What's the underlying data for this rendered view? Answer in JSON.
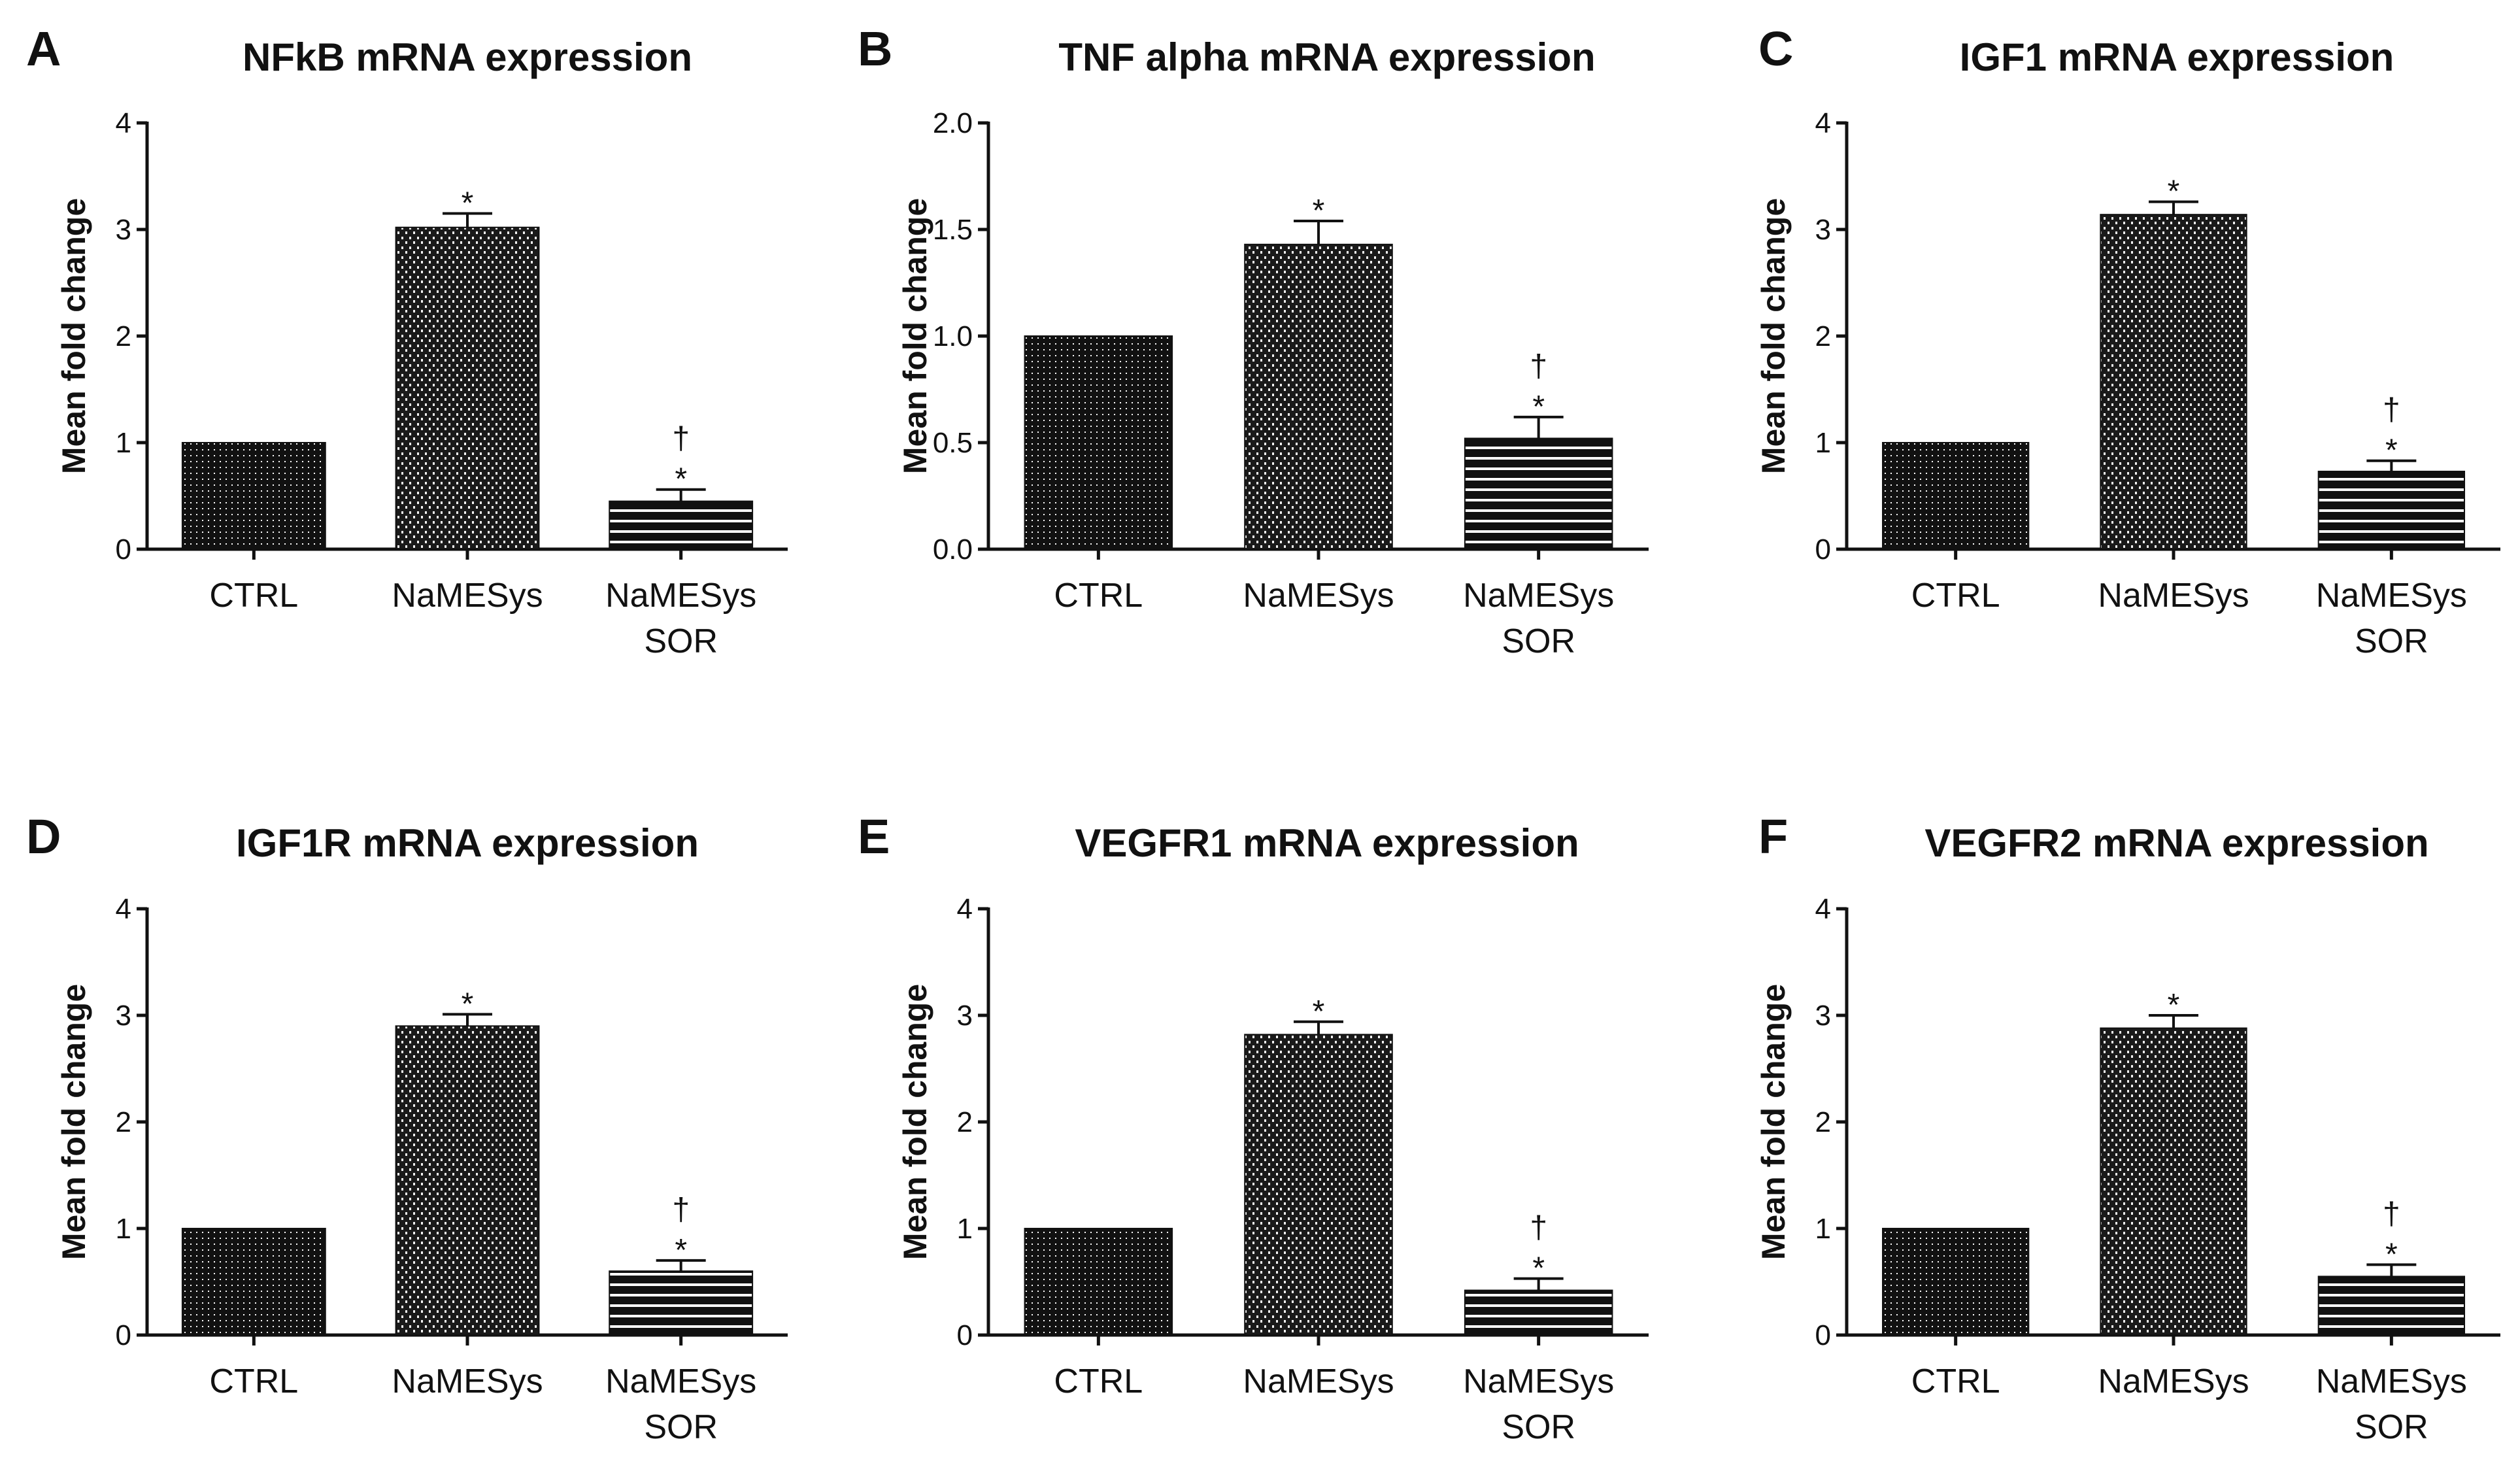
{
  "colors": {
    "ink": "#111111",
    "background": "#ffffff"
  },
  "chart_data": [
    {
      "type": "bar",
      "panel": "A",
      "title": "NFkB mRNA expression",
      "ylabel": "Mean fold change",
      "xlabel": "",
      "ylim": [
        0,
        4
      ],
      "yticks": [
        "0",
        "1",
        "2",
        "3",
        "4"
      ],
      "categories": [
        {
          "lines": [
            "CTRL"
          ],
          "value": 1.0,
          "error": 0,
          "marks": [],
          "pattern": "dots"
        },
        {
          "lines": [
            "NaMESys"
          ],
          "value": 3.02,
          "error": 0.13,
          "marks": [
            "*"
          ],
          "pattern": "hatch"
        },
        {
          "lines": [
            "NaMESys",
            "SOR"
          ],
          "value": 0.45,
          "error": 0.11,
          "marks": [
            "†",
            "*"
          ],
          "pattern": "stripes"
        }
      ]
    },
    {
      "type": "bar",
      "panel": "B",
      "title": "TNF alpha mRNA expression",
      "ylabel": "Mean fold change",
      "xlabel": "",
      "ylim": [
        0,
        2
      ],
      "yticks": [
        "0.0",
        "0.5",
        "1.0",
        "1.5",
        "2.0"
      ],
      "categories": [
        {
          "lines": [
            "CTRL"
          ],
          "value": 1.0,
          "error": 0,
          "marks": [],
          "pattern": "dots"
        },
        {
          "lines": [
            "NaMESys"
          ],
          "value": 1.43,
          "error": 0.11,
          "marks": [
            "*"
          ],
          "pattern": "hatch"
        },
        {
          "lines": [
            "NaMESys",
            "SOR"
          ],
          "value": 0.52,
          "error": 0.1,
          "marks": [
            "†",
            "*"
          ],
          "pattern": "stripes"
        }
      ]
    },
    {
      "type": "bar",
      "panel": "C",
      "title": "IGF1 mRNA expression",
      "ylabel": "Mean fold change",
      "xlabel": "",
      "ylim": [
        0,
        4
      ],
      "yticks": [
        "0",
        "1",
        "2",
        "3",
        "4"
      ],
      "categories": [
        {
          "lines": [
            "CTRL"
          ],
          "value": 1.0,
          "error": 0,
          "marks": [],
          "pattern": "dots"
        },
        {
          "lines": [
            "NaMESys"
          ],
          "value": 3.14,
          "error": 0.12,
          "marks": [
            "*"
          ],
          "pattern": "hatch"
        },
        {
          "lines": [
            "NaMESys",
            "SOR"
          ],
          "value": 0.73,
          "error": 0.1,
          "marks": [
            "†",
            "*"
          ],
          "pattern": "stripes"
        }
      ]
    },
    {
      "type": "bar",
      "panel": "D",
      "title": "IGF1R mRNA expression",
      "ylabel": "Mean fold change",
      "xlabel": "",
      "ylim": [
        0,
        4
      ],
      "yticks": [
        "0",
        "1",
        "2",
        "3",
        "4"
      ],
      "categories": [
        {
          "lines": [
            "CTRL"
          ],
          "value": 1.0,
          "error": 0,
          "marks": [],
          "pattern": "dots"
        },
        {
          "lines": [
            "NaMESys"
          ],
          "value": 2.9,
          "error": 0.11,
          "marks": [
            "*"
          ],
          "pattern": "hatch"
        },
        {
          "lines": [
            "NaMESys",
            "SOR"
          ],
          "value": 0.6,
          "error": 0.1,
          "marks": [
            "†",
            "*"
          ],
          "pattern": "stripes"
        }
      ]
    },
    {
      "type": "bar",
      "panel": "E",
      "title": "VEGFR1 mRNA expression",
      "ylabel": "Mean fold change",
      "xlabel": "",
      "ylim": [
        0,
        4
      ],
      "yticks": [
        "0",
        "1",
        "2",
        "3",
        "4"
      ],
      "categories": [
        {
          "lines": [
            "CTRL"
          ],
          "value": 1.0,
          "error": 0,
          "marks": [],
          "pattern": "dots"
        },
        {
          "lines": [
            "NaMESys"
          ],
          "value": 2.82,
          "error": 0.12,
          "marks": [
            "*"
          ],
          "pattern": "hatch"
        },
        {
          "lines": [
            "NaMESys",
            "SOR"
          ],
          "value": 0.42,
          "error": 0.11,
          "marks": [
            "†",
            "*"
          ],
          "pattern": "stripes"
        }
      ]
    },
    {
      "type": "bar",
      "panel": "F",
      "title": "VEGFR2 mRNA expression",
      "ylabel": "Mean fold change",
      "xlabel": "",
      "ylim": [
        0,
        4
      ],
      "yticks": [
        "0",
        "1",
        "2",
        "3",
        "4"
      ],
      "categories": [
        {
          "lines": [
            "CTRL"
          ],
          "value": 1.0,
          "error": 0,
          "marks": [],
          "pattern": "dots"
        },
        {
          "lines": [
            "NaMESys"
          ],
          "value": 2.88,
          "error": 0.12,
          "marks": [
            "*"
          ],
          "pattern": "hatch"
        },
        {
          "lines": [
            "NaMESys",
            "SOR"
          ],
          "value": 0.55,
          "error": 0.11,
          "marks": [
            "†",
            "*"
          ],
          "pattern": "stripes"
        }
      ]
    }
  ]
}
